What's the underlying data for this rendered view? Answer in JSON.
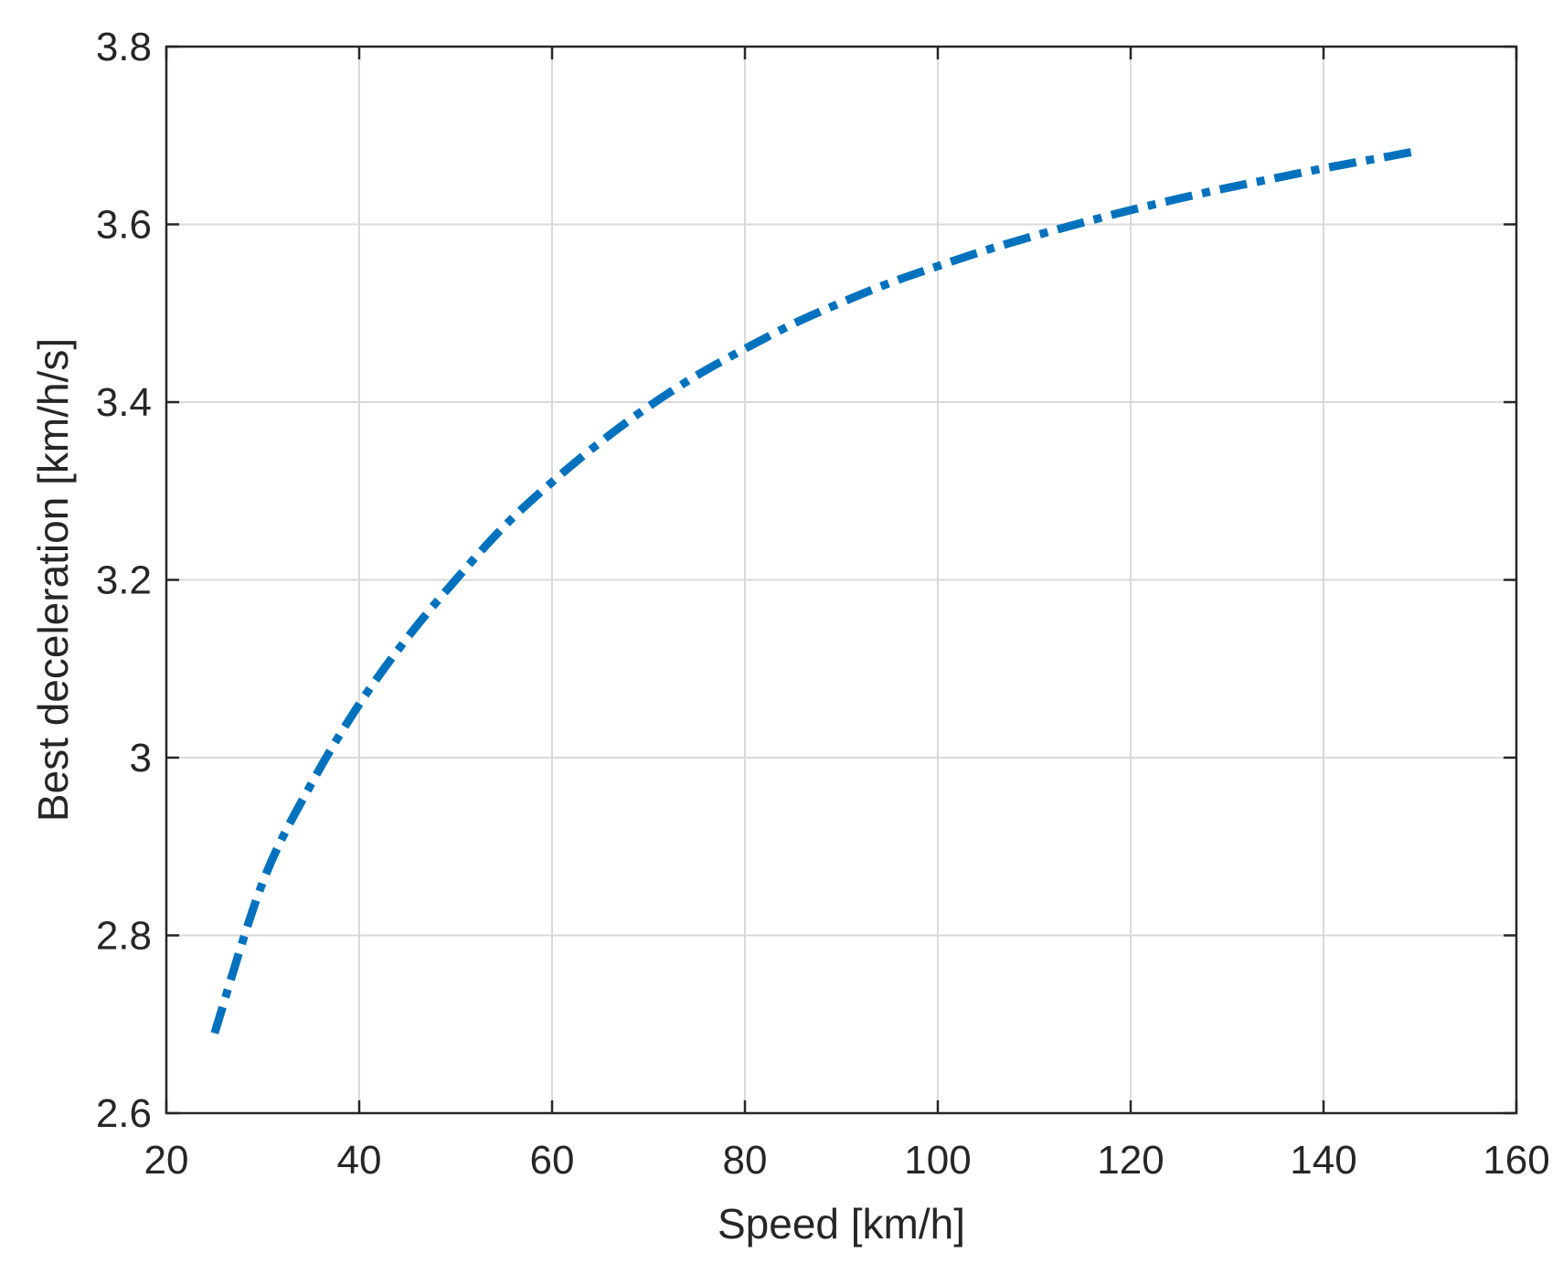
{
  "chart_data": {
    "type": "line",
    "title": "",
    "xlabel": "Speed [km/h]",
    "ylabel": "Best deceleration [km/h/s]",
    "xlim": [
      20,
      160
    ],
    "ylim": [
      2.6,
      3.8
    ],
    "xticks": [
      20,
      40,
      60,
      80,
      100,
      120,
      140,
      160
    ],
    "xtick_labels": [
      "20",
      "40",
      "60",
      "80",
      "100",
      "120",
      "140",
      "160"
    ],
    "yticks": [
      2.6,
      2.8,
      3.0,
      3.2,
      3.4,
      3.6,
      3.8
    ],
    "ytick_labels": [
      "2.6",
      "2.8",
      "3",
      "3.2",
      "3.4",
      "3.6",
      "3.8"
    ],
    "grid": true,
    "legend": "none",
    "colors": {
      "series": "#0072BD",
      "axis": "#262626",
      "grid": "#d9d9d9"
    },
    "series": [
      {
        "line_style": "dash-dot",
        "x": [
          25,
          30,
          35,
          40,
          45,
          50,
          55,
          60,
          65,
          70,
          75,
          80,
          85,
          90,
          95,
          100,
          105,
          110,
          115,
          120,
          125,
          130,
          135,
          140,
          145,
          150
        ],
        "y": [
          2.69,
          2.86,
          2.97,
          3.06,
          3.135,
          3.2,
          3.26,
          3.31,
          3.355,
          3.395,
          3.43,
          3.46,
          3.488,
          3.512,
          3.534,
          3.553,
          3.571,
          3.587,
          3.602,
          3.616,
          3.629,
          3.641,
          3.652,
          3.663,
          3.673,
          3.683
        ]
      }
    ]
  }
}
